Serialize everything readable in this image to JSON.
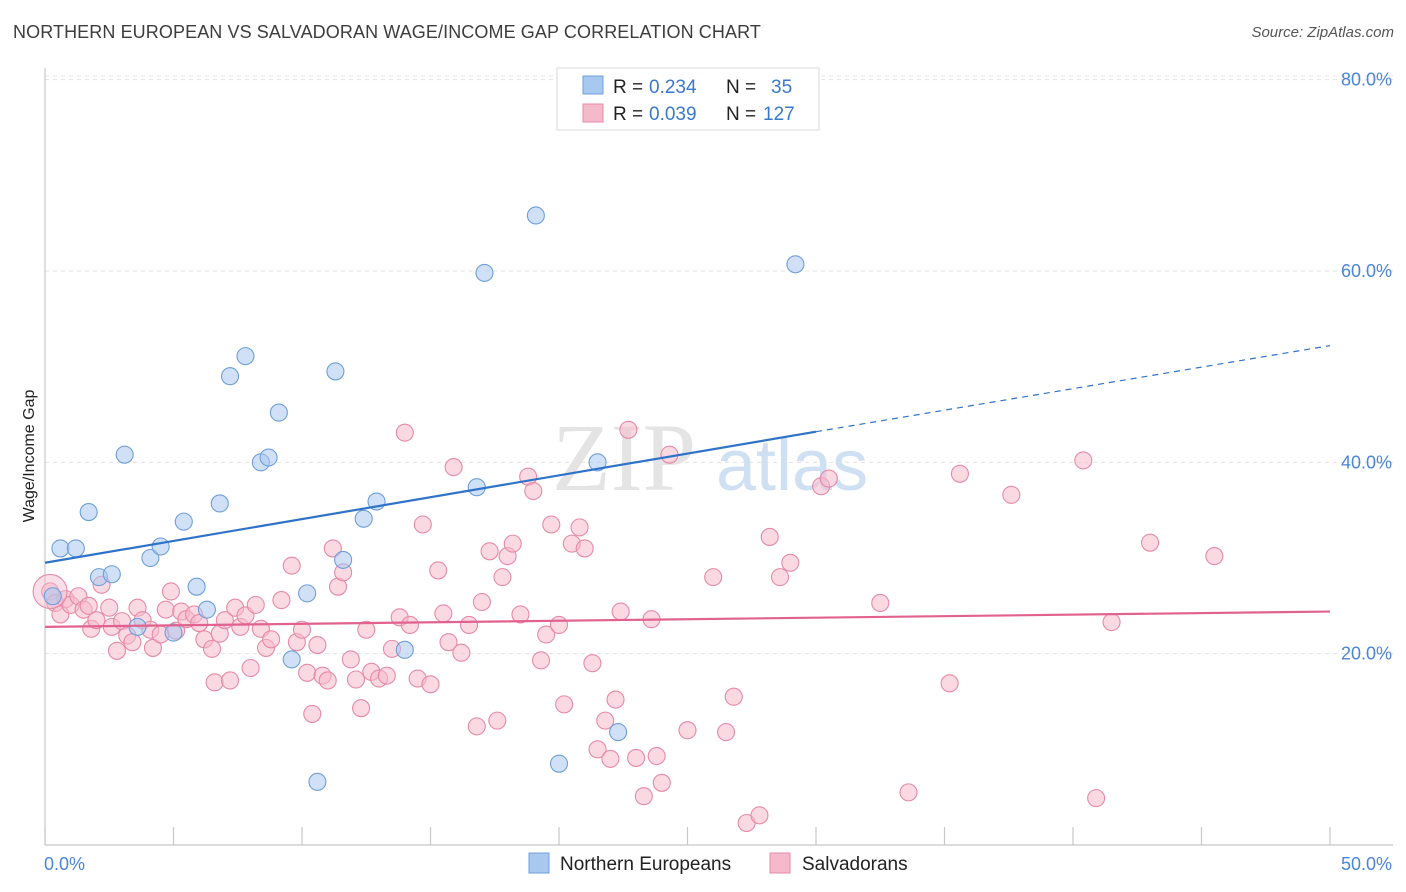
{
  "title": "NORTHERN EUROPEAN VS SALVADORAN WAGE/INCOME GAP CORRELATION CHART",
  "source": "Source: ZipAtlas.com",
  "watermark": {
    "zip": "ZIP",
    "atlas": "atlas"
  },
  "chart_data": {
    "type": "scatter",
    "title": "NORTHERN EUROPEAN VS SALVADORAN WAGE/INCOME GAP CORRELATION CHART",
    "ylabel": "Wage/Income Gap",
    "xlabel": "",
    "xlim": [
      0,
      50
    ],
    "ylim": [
      0,
      82
    ],
    "x_tick_labels": {
      "min": "0.0%",
      "max": "50.0%"
    },
    "y_ticks": [
      {
        "value": 20,
        "label": "20.0%"
      },
      {
        "value": 40,
        "label": "40.0%"
      },
      {
        "value": 60,
        "label": "60.0%"
      },
      {
        "value": 80,
        "label": "80.0%"
      }
    ],
    "grid": true,
    "legend_position": "top-center",
    "series": [
      {
        "name": "Northern Europeans",
        "color": "#a9c8f0",
        "stroke": "#6f9fd9",
        "line_color": "#2f73c9",
        "R": "0.234",
        "N": "35",
        "trend": {
          "x0": 0,
          "y0": 29.5,
          "x1": 30,
          "y1": 43.2,
          "dash_x1": 50,
          "dash_y1": 52.2
        },
        "points": [
          [
            0.3,
            26.0
          ],
          [
            0.6,
            31.0
          ],
          [
            1.2,
            31.0
          ],
          [
            1.7,
            34.8
          ],
          [
            2.1,
            28.0
          ],
          [
            2.6,
            28.3
          ],
          [
            3.1,
            40.8
          ],
          [
            3.6,
            22.8
          ],
          [
            4.1,
            30.0
          ],
          [
            4.5,
            31.2
          ],
          [
            5.0,
            22.2
          ],
          [
            5.4,
            33.8
          ],
          [
            5.9,
            27.0
          ],
          [
            6.3,
            24.6
          ],
          [
            6.8,
            35.7
          ],
          [
            7.2,
            49.0
          ],
          [
            7.8,
            51.1
          ],
          [
            8.4,
            40.0
          ],
          [
            8.7,
            40.5
          ],
          [
            9.1,
            45.2
          ],
          [
            9.6,
            19.4
          ],
          [
            10.2,
            26.3
          ],
          [
            10.6,
            6.6
          ],
          [
            11.3,
            49.5
          ],
          [
            11.6,
            29.8
          ],
          [
            12.4,
            34.1
          ],
          [
            12.9,
            35.9
          ],
          [
            14.0,
            20.4
          ],
          [
            16.8,
            37.4
          ],
          [
            17.1,
            59.8
          ],
          [
            19.1,
            65.8
          ],
          [
            20.0,
            8.5
          ],
          [
            21.5,
            40.0
          ],
          [
            22.3,
            11.8
          ],
          [
            29.2,
            60.7
          ]
        ]
      },
      {
        "name": "Salvadorans",
        "color": "#f5b9cc",
        "stroke": "#e68aa8",
        "line_color": "#e2628f",
        "R": "0.039",
        "N": "127",
        "trend": {
          "x0": 0,
          "y0": 22.8,
          "x1": 50,
          "y1": 24.4
        },
        "points": [
          [
            0.2,
            26.5
          ],
          [
            0.4,
            25.3
          ],
          [
            0.6,
            24.1
          ],
          [
            0.8,
            25.7
          ],
          [
            1.0,
            25.1
          ],
          [
            1.3,
            26.0
          ],
          [
            1.5,
            24.6
          ],
          [
            1.7,
            25.0
          ],
          [
            1.8,
            22.6
          ],
          [
            2.0,
            23.5
          ],
          [
            2.2,
            27.2
          ],
          [
            2.5,
            24.8
          ],
          [
            2.6,
            22.8
          ],
          [
            2.8,
            20.3
          ],
          [
            3.0,
            23.4
          ],
          [
            3.2,
            21.9
          ],
          [
            3.4,
            21.2
          ],
          [
            3.6,
            24.8
          ],
          [
            3.8,
            23.5
          ],
          [
            4.1,
            22.5
          ],
          [
            4.2,
            20.6
          ],
          [
            4.5,
            22.0
          ],
          [
            4.7,
            24.6
          ],
          [
            4.9,
            26.5
          ],
          [
            5.1,
            22.4
          ],
          [
            5.3,
            24.4
          ],
          [
            5.5,
            23.6
          ],
          [
            5.8,
            24.1
          ],
          [
            6.0,
            23.2
          ],
          [
            6.2,
            21.5
          ],
          [
            6.5,
            20.5
          ],
          [
            6.6,
            17.0
          ],
          [
            6.8,
            22.1
          ],
          [
            7.0,
            23.5
          ],
          [
            7.2,
            17.2
          ],
          [
            7.4,
            24.8
          ],
          [
            7.6,
            22.8
          ],
          [
            7.8,
            24.0
          ],
          [
            8.0,
            18.5
          ],
          [
            8.2,
            25.1
          ],
          [
            8.4,
            22.6
          ],
          [
            8.6,
            20.6
          ],
          [
            8.8,
            21.5
          ],
          [
            9.2,
            25.6
          ],
          [
            9.6,
            29.2
          ],
          [
            9.8,
            21.2
          ],
          [
            10.0,
            22.5
          ],
          [
            10.2,
            18.0
          ],
          [
            10.4,
            13.7
          ],
          [
            10.6,
            20.9
          ],
          [
            10.8,
            17.7
          ],
          [
            11.0,
            17.2
          ],
          [
            11.2,
            31.0
          ],
          [
            11.4,
            27.0
          ],
          [
            11.6,
            28.5
          ],
          [
            11.9,
            19.4
          ],
          [
            12.1,
            17.3
          ],
          [
            12.3,
            14.3
          ],
          [
            12.5,
            22.5
          ],
          [
            12.7,
            18.1
          ],
          [
            13.0,
            17.4
          ],
          [
            13.3,
            17.7
          ],
          [
            13.5,
            20.5
          ],
          [
            13.8,
            23.8
          ],
          [
            14.0,
            43.1
          ],
          [
            14.2,
            23.0
          ],
          [
            14.5,
            17.4
          ],
          [
            14.7,
            33.5
          ],
          [
            15.0,
            16.8
          ],
          [
            15.3,
            28.7
          ],
          [
            15.5,
            24.2
          ],
          [
            15.7,
            21.2
          ],
          [
            15.9,
            39.5
          ],
          [
            16.2,
            20.1
          ],
          [
            16.5,
            23.0
          ],
          [
            16.8,
            12.4
          ],
          [
            17.0,
            25.4
          ],
          [
            17.3,
            30.7
          ],
          [
            17.6,
            13.0
          ],
          [
            17.8,
            28.0
          ],
          [
            18.0,
            30.2
          ],
          [
            18.2,
            31.5
          ],
          [
            18.5,
            24.1
          ],
          [
            18.8,
            38.5
          ],
          [
            19.0,
            37.0
          ],
          [
            19.3,
            19.3
          ],
          [
            19.5,
            22.0
          ],
          [
            19.7,
            33.5
          ],
          [
            20.0,
            23.0
          ],
          [
            20.2,
            14.7
          ],
          [
            20.5,
            31.5
          ],
          [
            20.8,
            33.2
          ],
          [
            21.0,
            31.0
          ],
          [
            21.3,
            19.0
          ],
          [
            21.5,
            10.0
          ],
          [
            21.8,
            13.0
          ],
          [
            22.0,
            9.0
          ],
          [
            22.2,
            15.2
          ],
          [
            22.4,
            24.4
          ],
          [
            22.7,
            43.4
          ],
          [
            23.0,
            9.1
          ],
          [
            23.3,
            5.1
          ],
          [
            23.6,
            23.6
          ],
          [
            23.8,
            9.3
          ],
          [
            24.0,
            6.5
          ],
          [
            24.3,
            40.8
          ],
          [
            25.0,
            12.0
          ],
          [
            26.0,
            28.0
          ],
          [
            26.5,
            11.8
          ],
          [
            26.8,
            15.5
          ],
          [
            27.3,
            2.3
          ],
          [
            27.8,
            3.1
          ],
          [
            28.2,
            32.2
          ],
          [
            28.6,
            28.0
          ],
          [
            29.0,
            29.5
          ],
          [
            30.2,
            37.5
          ],
          [
            30.5,
            38.3
          ],
          [
            32.5,
            25.3
          ],
          [
            33.6,
            5.5
          ],
          [
            35.2,
            16.9
          ],
          [
            35.6,
            38.8
          ],
          [
            37.6,
            36.6
          ],
          [
            40.4,
            40.2
          ],
          [
            40.9,
            4.9
          ],
          [
            41.5,
            23.3
          ],
          [
            43.0,
            31.6
          ],
          [
            45.5,
            30.2
          ]
        ]
      }
    ]
  },
  "legend": {
    "rows": [
      {
        "r_label": "R = ",
        "r_value": "0.234",
        "n_label": "N = ",
        "n_value": "35"
      },
      {
        "r_label": "R = ",
        "r_value": "0.039",
        "n_label": "N = ",
        "n_value": "127"
      }
    ]
  },
  "bottom_legend": [
    "Northern Europeans",
    "Salvadorans"
  ]
}
